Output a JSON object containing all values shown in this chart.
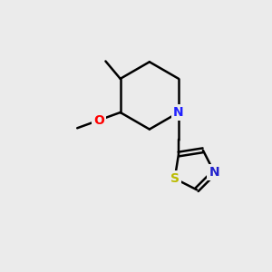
{
  "background_color": "#ebebeb",
  "bond_color": "#000000",
  "bond_width": 1.8,
  "atom_labels": {
    "N_piperidine": {
      "label": "N",
      "color": "#2020ff",
      "fontsize": 10,
      "fontweight": "bold"
    },
    "O_methoxy": {
      "label": "O",
      "color": "#ff0000",
      "fontsize": 10,
      "fontweight": "bold"
    },
    "N_thiazole": {
      "label": "N",
      "color": "#2020cc",
      "fontsize": 10,
      "fontweight": "bold"
    },
    "S_thiazole": {
      "label": "S",
      "color": "#bbbb00",
      "fontsize": 10,
      "fontweight": "bold"
    }
  },
  "figsize": [
    3.0,
    3.0
  ],
  "dpi": 100,
  "xlim": [
    0,
    10
  ],
  "ylim": [
    0,
    10
  ]
}
